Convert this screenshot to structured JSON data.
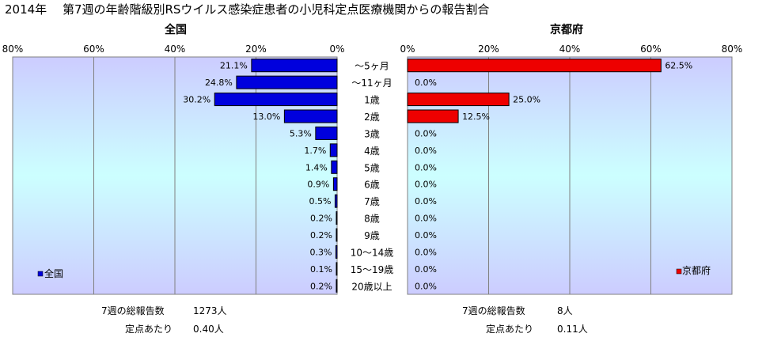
{
  "title": "2014年　 第7週の年齢階級別RSウイルス感染症患者の小児科定点医療機関からの報告割合",
  "colors": {
    "left_bar": "#0000dd",
    "right_bar": "#ee0000",
    "bar_edge": "#000000"
  },
  "categories": [
    "～5ヶ月",
    "～11ヶ月",
    "1歳",
    "2歳",
    "3歳",
    "4歳",
    "5歳",
    "6歳",
    "7歳",
    "8歳",
    "9歳",
    "10～14歳",
    "15～19歳",
    "20歳以上"
  ],
  "chart_data": [
    {
      "type": "bar",
      "title": "全国",
      "orientation": "horizontal",
      "x_direction": "reversed",
      "xlim": [
        0,
        80
      ],
      "ticks": [
        "80%",
        "60%",
        "40%",
        "20%",
        "0%"
      ],
      "series": [
        {
          "name": "全国",
          "values": [
            21.1,
            24.8,
            30.2,
            13.0,
            5.3,
            1.7,
            1.4,
            0.9,
            0.5,
            0.2,
            0.2,
            0.3,
            0.1,
            0.2
          ],
          "labels": [
            "21.1%",
            "24.8%",
            "30.2%",
            "13.0%",
            "5.3%",
            "1.7%",
            "1.4%",
            "0.9%",
            "0.5%",
            "0.2%",
            "0.2%",
            "0.3%",
            "0.1%",
            "0.2%"
          ]
        }
      ],
      "legend": "全国",
      "legend_position": "bottom-left",
      "grid": true,
      "footer": {
        "total_label": "7週の総報告数",
        "total_value": "1273人",
        "per_label": "定点あたり",
        "per_value": "0.40人"
      }
    },
    {
      "type": "bar",
      "title": "京都府",
      "orientation": "horizontal",
      "xlim": [
        0,
        80
      ],
      "ticks": [
        "0%",
        "20%",
        "40%",
        "60%",
        "80%"
      ],
      "series": [
        {
          "name": "京都府",
          "values": [
            62.5,
            0,
            25.0,
            12.5,
            0,
            0,
            0,
            0,
            0,
            0,
            0,
            0,
            0,
            0
          ],
          "labels": [
            "62.5%",
            "0.0%",
            "25.0%",
            "12.5%",
            "0.0%",
            "0.0%",
            "0.0%",
            "0.0%",
            "0.0%",
            "0.0%",
            "0.0%",
            "0.0%",
            "0.0%",
            "0.0%"
          ]
        }
      ],
      "legend": "京都府",
      "legend_position": "bottom-right",
      "grid": true,
      "footer": {
        "total_label": "7週の総報告数",
        "total_value": "8人",
        "per_label": "定点あたり",
        "per_value": "0.11人"
      }
    }
  ]
}
